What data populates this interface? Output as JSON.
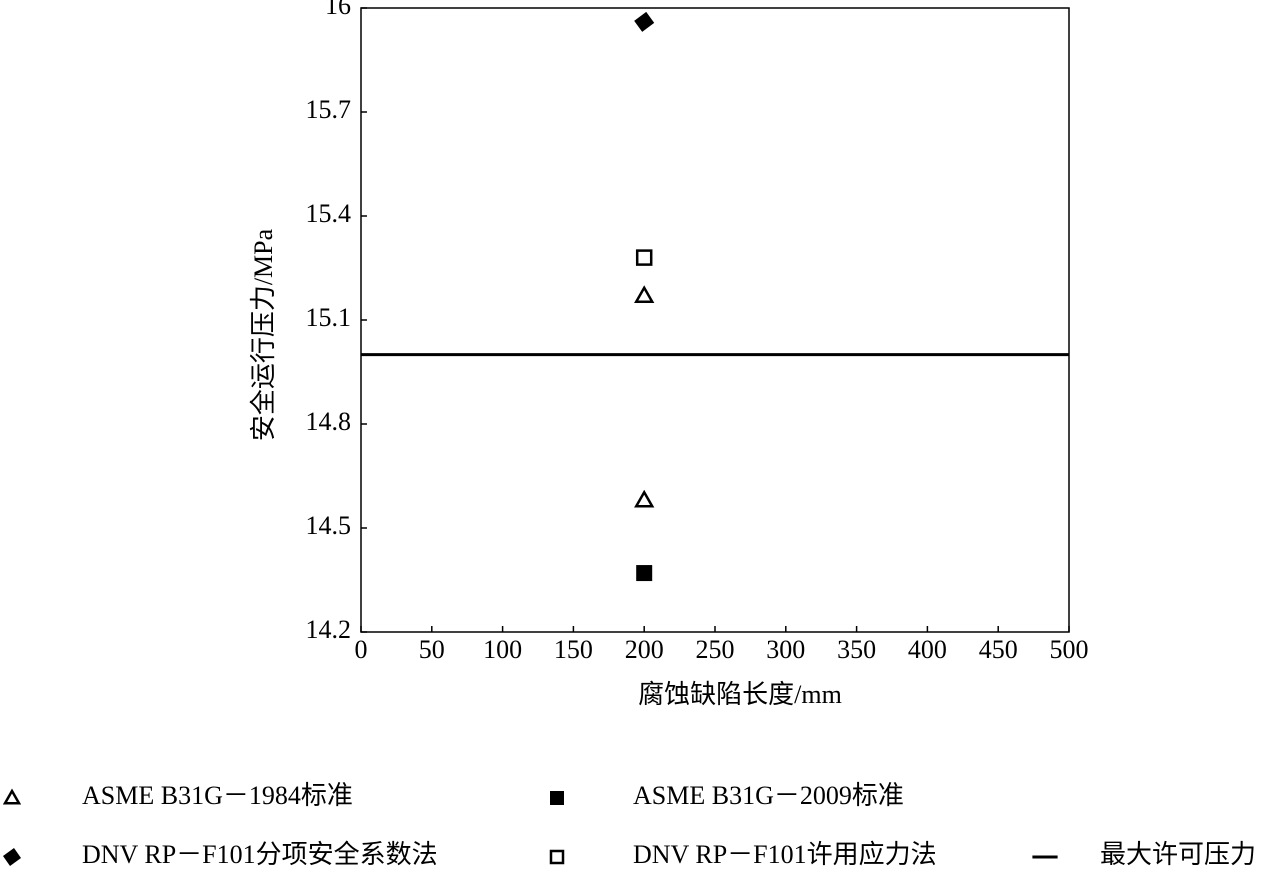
{
  "chart_data": {
    "type": "scatter",
    "x_label": "腐蚀缺陷长度/mm",
    "y_label": "安全运行压力/MPa",
    "xlim": [
      0,
      500
    ],
    "ylim": [
      14.2,
      16
    ],
    "xticks": [
      0,
      50,
      100,
      150,
      200,
      250,
      300,
      350,
      400,
      450,
      500
    ],
    "yticks": [
      14.2,
      14.5,
      14.8,
      15.1,
      15.4,
      15.7,
      16
    ],
    "series": [
      {
        "name": "ASME B31G－1984标准",
        "marker": "triangle-open",
        "color": "#000000",
        "x": [
          200,
          200
        ],
        "values": [
          14.58,
          15.17
        ]
      },
      {
        "name": "ASME B31G－2009标准",
        "marker": "square-filled",
        "color": "#000000",
        "x": [
          200
        ],
        "values": [
          14.37
        ]
      },
      {
        "name": "DNV RP－F101分项安全系数法",
        "marker": "diamond-filled",
        "color": "#000000",
        "x": [
          200
        ],
        "values": [
          15.96
        ]
      },
      {
        "name": "DNV RP－F101许用应力法",
        "marker": "square-open",
        "color": "#000000",
        "x": [
          200
        ],
        "values": [
          15.28
        ]
      },
      {
        "name": "最大许可压力",
        "marker": "line",
        "color": "#000000",
        "x": [
          0,
          500
        ],
        "values": [
          15.0,
          15.0
        ]
      }
    ]
  }
}
